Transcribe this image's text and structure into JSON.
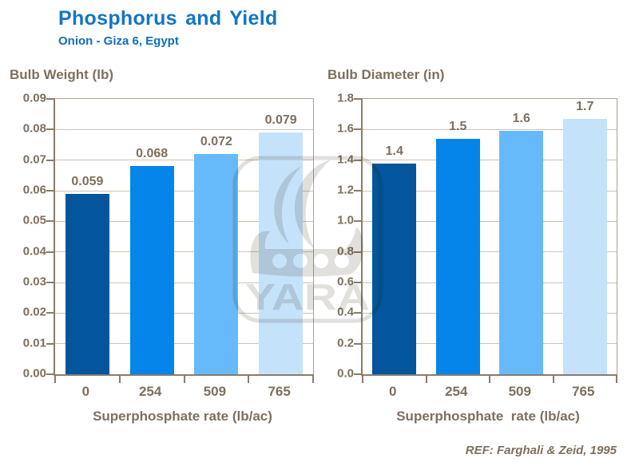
{
  "header": {
    "title": "Phosphorus and Yield",
    "subtitle": "Onion - Giza 6, Egypt"
  },
  "footer": {
    "reference": "REF: Farghali & Zeid, 1995"
  },
  "watermark": {
    "label": "YARA"
  },
  "colors": {
    "title_blue": "#1375C5",
    "subtitle_blue": "#0F6FBE",
    "text_brown": "#7E6F5E",
    "axis_dark": "#8A7C6A",
    "axis_light": "#AFA293",
    "gridline": "#CDC3B7",
    "watermark_gray": "#E2E0DC",
    "bar_colors": [
      "#03569B",
      "#0585EA",
      "#67BAF9",
      "#C5E2FB"
    ]
  },
  "chart_data": [
    {
      "type": "bar",
      "title": "Bulb Weight (lb)",
      "xlabel": "Superphosphate rate (lb/ac)",
      "ylabel": "",
      "categories": [
        "0",
        "254",
        "509",
        "765"
      ],
      "values": [
        0.059,
        0.068,
        0.072,
        0.079
      ],
      "bar_labels": [
        "0.059",
        "0.068",
        "0.072",
        "0.079"
      ],
      "ylim": [
        0,
        0.09
      ],
      "yticks": [
        "0.09",
        "0.08",
        "0.07",
        "0.06",
        "0.05",
        "0.04",
        "0.03",
        "0.02",
        "0.01",
        "0.00"
      ],
      "grid": true,
      "legend": "none"
    },
    {
      "type": "bar",
      "title": "Bulb Diameter (in)",
      "xlabel": "Superphosphate  rate (lb/ac)",
      "ylabel": "",
      "categories": [
        "0",
        "254",
        "509",
        "765"
      ],
      "values": [
        1.4,
        1.5,
        1.6,
        1.7
      ],
      "values_plotted": [
        1.38,
        1.54,
        1.59,
        1.67
      ],
      "bar_labels": [
        "1.4",
        "1.5",
        "1.6",
        "1.7"
      ],
      "ylim": [
        0,
        1.8
      ],
      "yticks": [
        "1.8",
        "1.6",
        "1.4",
        "1.2",
        "1.0",
        "0.8",
        "0.6",
        "0.4",
        "0.2",
        "0.0"
      ],
      "grid": true,
      "legend": "none"
    }
  ]
}
